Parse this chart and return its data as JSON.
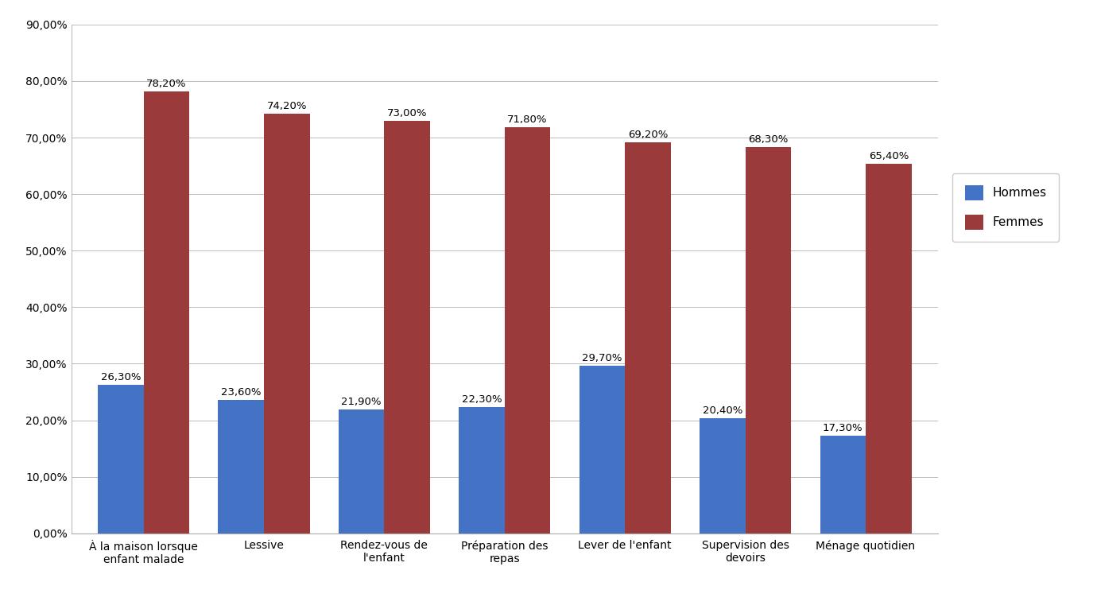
{
  "categories": [
    "À la maison lorsque\nenfant malade",
    "Lessive",
    "Rendez-vous de\nl'enfant",
    "Préparation des\nrepas",
    "Lever de l'enfant",
    "Supervision des\ndevoirs",
    "Ménage quotidien"
  ],
  "hommes": [
    26.3,
    23.6,
    21.9,
    22.3,
    29.7,
    20.4,
    17.3
  ],
  "femmes": [
    78.2,
    74.2,
    73.0,
    71.8,
    69.2,
    68.3,
    65.4
  ],
  "hommes_labels": [
    "26,30%",
    "23,60%",
    "21,90%",
    "22,30%",
    "29,70%",
    "20,40%",
    "17,30%"
  ],
  "femmes_labels": [
    "78,20%",
    "74,20%",
    "73,00%",
    "71,80%",
    "69,20%",
    "68,30%",
    "65,40%"
  ],
  "color_hommes": "#4472C4",
  "color_femmes": "#9B3A3A",
  "legend_hommes": "Hommes",
  "legend_femmes": "Femmes",
  "ylim": [
    0,
    90
  ],
  "yticks": [
    0,
    10,
    20,
    30,
    40,
    50,
    60,
    70,
    80,
    90
  ],
  "ytick_labels": [
    "0,00%",
    "10,00%",
    "20,00%",
    "30,00%",
    "40,00%",
    "50,00%",
    "60,00%",
    "70,00%",
    "80,00%",
    "90,00%"
  ],
  "background_color": "#FFFFFF",
  "bar_width": 0.38,
  "label_fontsize": 9.5,
  "tick_fontsize": 10,
  "legend_fontsize": 11
}
